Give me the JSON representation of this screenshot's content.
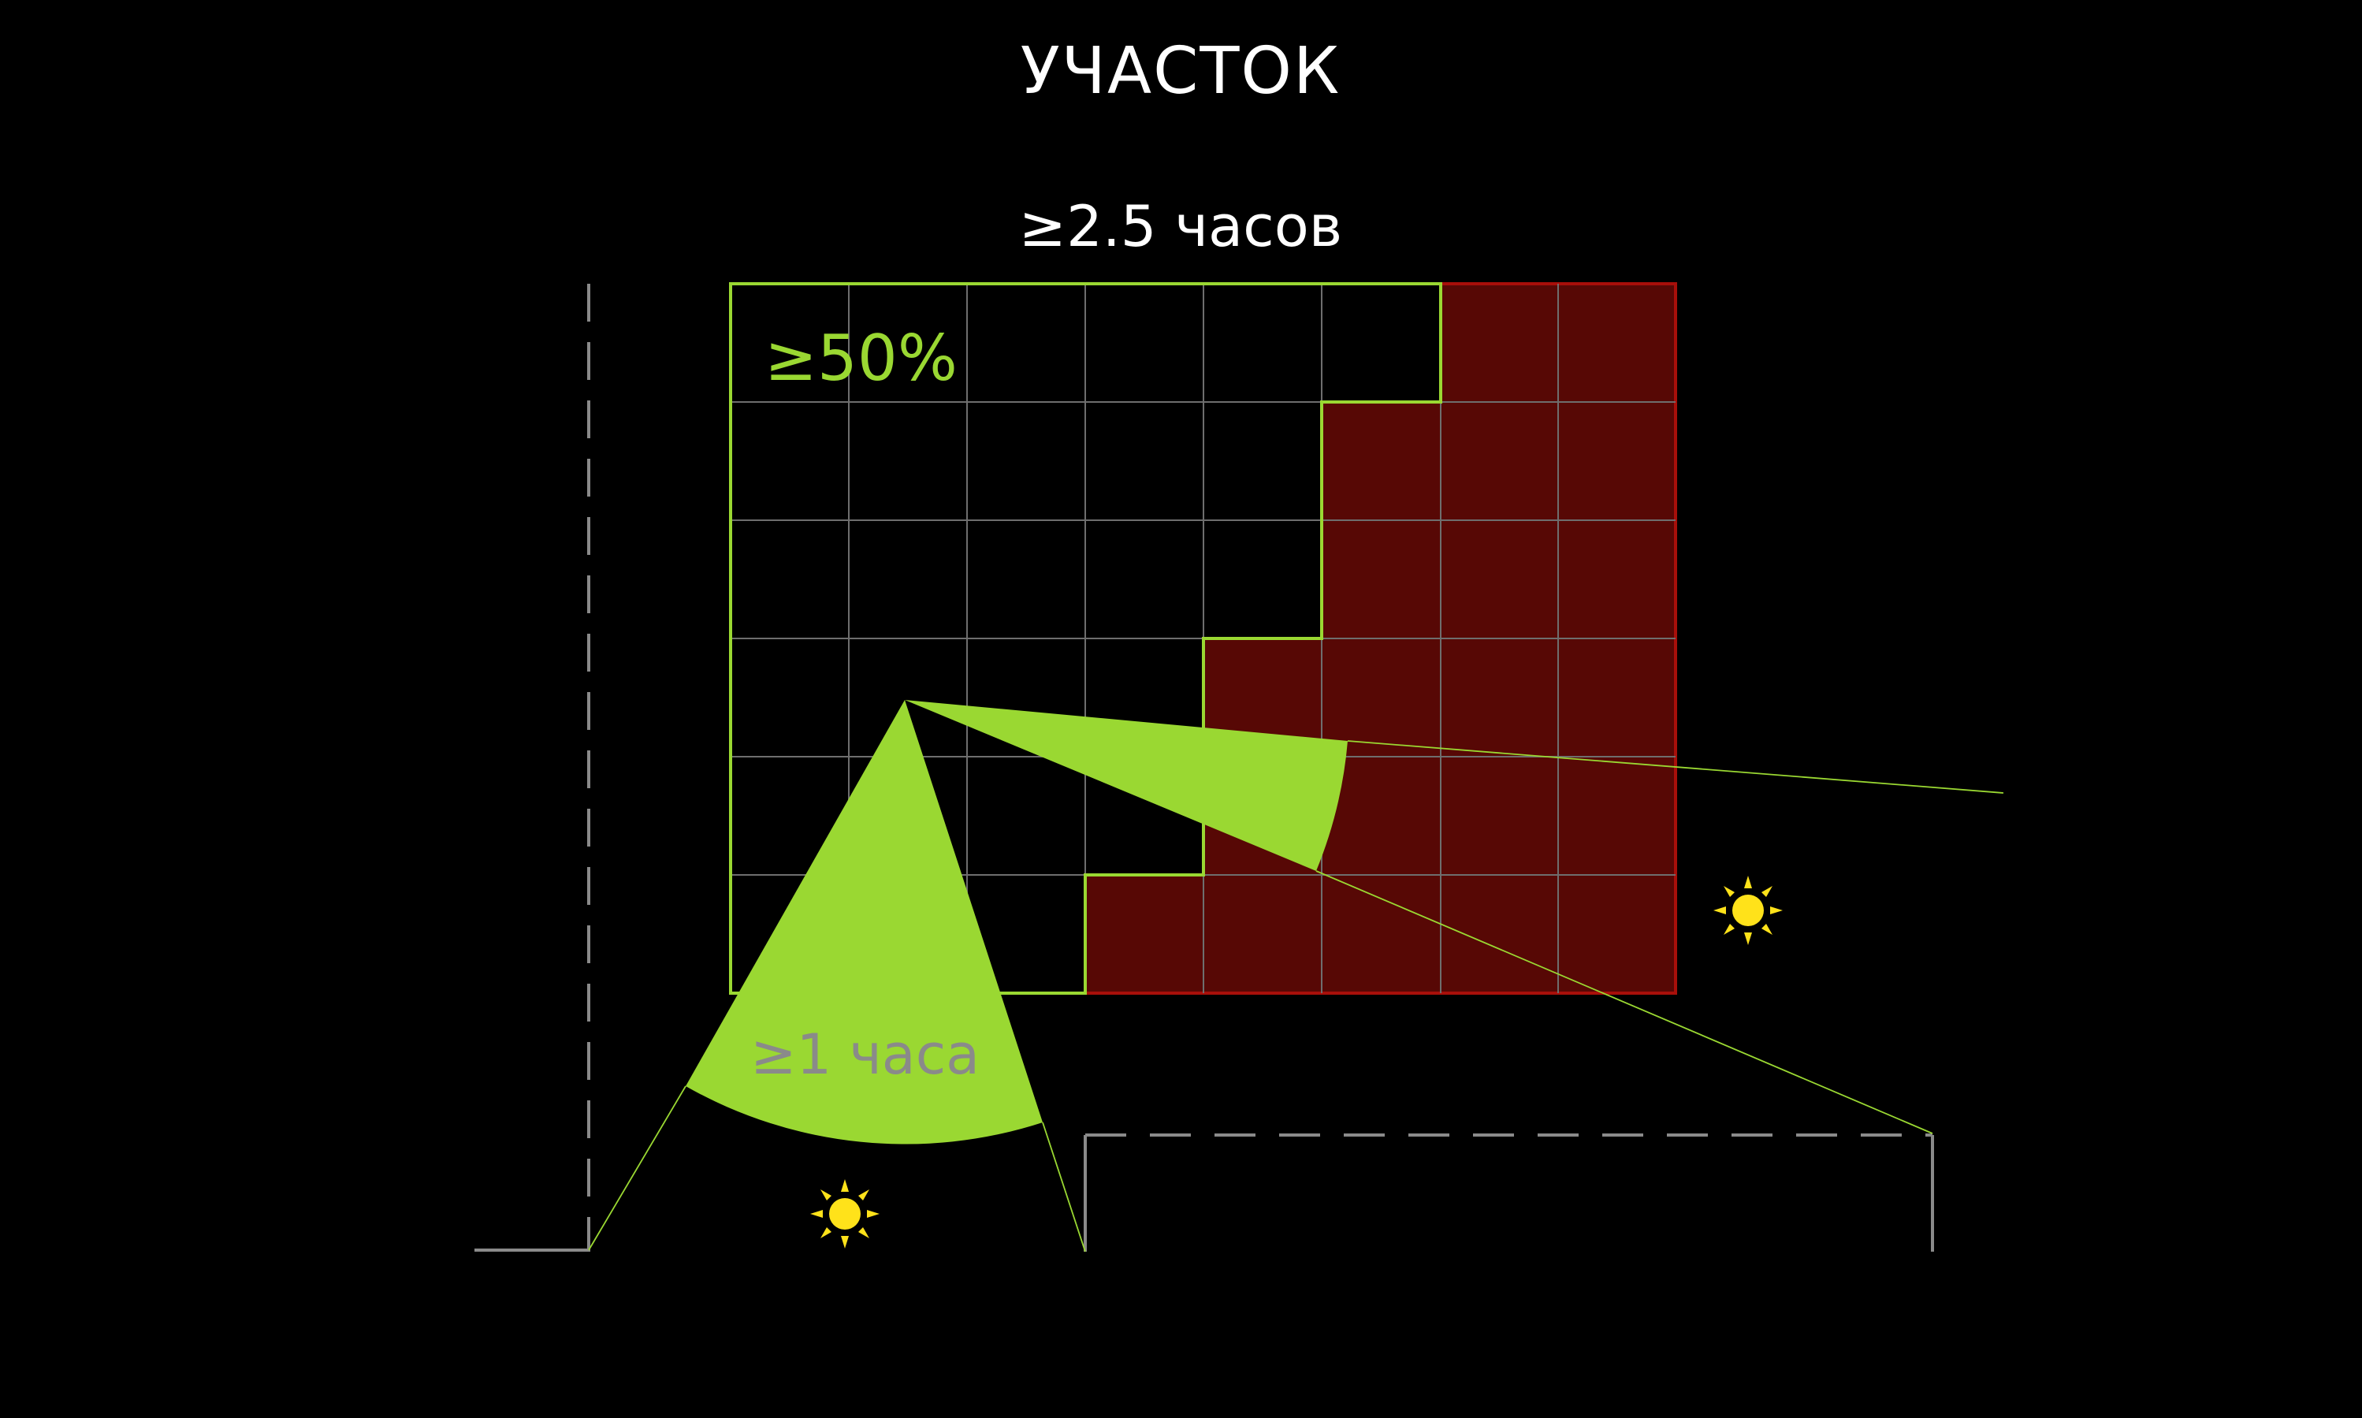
{
  "title": "УЧАСТОК",
  "labels": {
    "top_hours": "≥2.5 часов",
    "area_percent": "≥50%",
    "bottom_hours": "≥1 часа"
  },
  "icons": {
    "sun_right": "sun-icon",
    "sun_bottom": "sun-icon"
  },
  "colors": {
    "background": "#000000",
    "accent_green": "#9ad832",
    "shadow_red_fill": "#570805",
    "shadow_red_stroke": "#a80f0a",
    "grid": "#6e6e6e",
    "sun": "#ffe21a",
    "title": "#ffffff",
    "label_gray": "#8a8a8a"
  },
  "grid": {
    "columns": 8,
    "rows": 6
  }
}
